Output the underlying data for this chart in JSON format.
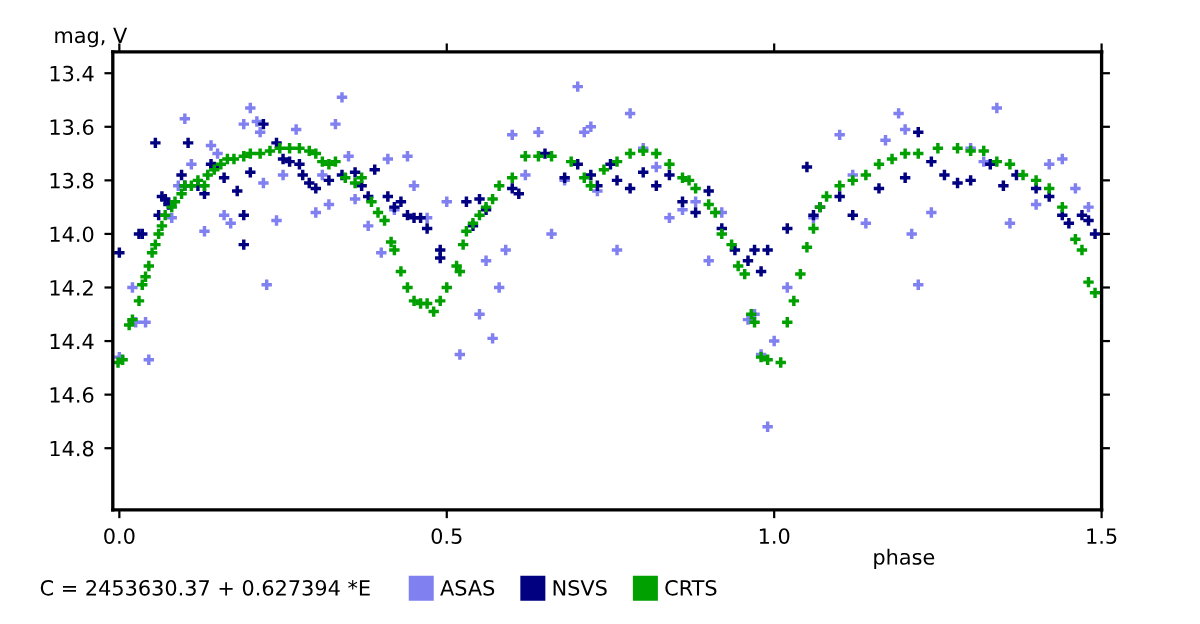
{
  "chart_data": {
    "type": "scatter",
    "ylabel": "mag, V",
    "xlabel": "phase",
    "annotations": [
      "C = 2453630.37 + 0.627394 *E"
    ],
    "xlim": [
      -0.01,
      1.5
    ],
    "ylim": [
      15.03,
      13.32
    ],
    "xticks": [
      {
        "value": 0,
        "label": "0.0"
      },
      {
        "value": 0.5,
        "label": "0.5"
      },
      {
        "value": 1,
        "label": "1.0"
      },
      {
        "value": 1.5,
        "label": "1.5"
      }
    ],
    "yticks": [
      {
        "value": 13.4,
        "label": "13.4"
      },
      {
        "value": 13.6,
        "label": "13.6"
      },
      {
        "value": 13.8,
        "label": "13.8"
      },
      {
        "value": 14,
        "label": "14.0"
      },
      {
        "value": 14.2,
        "label": "14.2"
      },
      {
        "value": 14.4,
        "label": "14.4"
      },
      {
        "value": 14.6,
        "label": "14.6"
      },
      {
        "value": 14.8,
        "label": "14.8"
      }
    ],
    "grid": false,
    "legend": "bottom",
    "marker": "cross",
    "series": [
      {
        "name": "ASAS",
        "color": "#8080f0",
        "x": [
          0.0,
          0.02,
          0.025,
          0.04,
          0.045,
          0.08,
          0.09,
          0.1,
          0.11,
          0.13,
          0.14,
          0.15,
          0.16,
          0.17,
          0.19,
          0.2,
          0.21,
          0.215,
          0.22,
          0.225,
          0.24,
          0.25,
          0.27,
          0.3,
          0.31,
          0.32,
          0.33,
          0.34,
          0.35,
          0.36,
          0.38,
          0.4,
          0.41,
          0.42,
          0.44,
          0.45,
          0.47,
          0.5,
          0.52,
          0.55,
          0.56,
          0.57,
          0.58,
          0.59,
          0.6,
          0.62,
          0.64,
          0.66,
          0.68,
          0.7,
          0.71,
          0.72,
          0.73,
          0.76,
          0.78,
          0.8,
          0.82,
          0.84,
          0.86,
          0.88,
          0.9,
          0.92,
          0.96,
          0.97,
          0.98,
          0.99,
          1.0,
          1.02,
          1.06,
          1.1,
          1.12,
          1.14,
          1.17,
          1.19,
          1.2,
          1.21,
          1.22,
          1.24,
          1.3,
          1.32,
          1.34,
          1.36,
          1.4,
          1.42,
          1.44,
          1.46,
          1.48
        ],
        "values": [
          14.46,
          14.2,
          14.33,
          14.33,
          14.47,
          13.94,
          13.82,
          13.57,
          13.74,
          13.99,
          13.67,
          13.7,
          13.93,
          13.96,
          13.59,
          13.53,
          13.58,
          13.62,
          13.81,
          14.19,
          13.95,
          13.78,
          13.61,
          13.92,
          13.78,
          13.89,
          13.59,
          13.49,
          13.71,
          13.87,
          13.97,
          14.07,
          13.72,
          13.91,
          13.71,
          13.82,
          13.94,
          13.88,
          14.45,
          14.3,
          14.1,
          14.39,
          14.2,
          14.06,
          13.63,
          13.78,
          13.62,
          14.0,
          13.8,
          13.45,
          13.62,
          13.6,
          13.84,
          14.06,
          13.55,
          13.68,
          13.75,
          13.94,
          13.91,
          13.88,
          14.1,
          13.92,
          14.32,
          14.3,
          14.45,
          14.72,
          14.4,
          14.2,
          13.94,
          13.63,
          13.78,
          13.96,
          13.65,
          13.55,
          13.61,
          14.0,
          14.19,
          13.92,
          13.68,
          13.73,
          13.53,
          13.96,
          13.89,
          13.74,
          13.72,
          13.83,
          13.9
        ]
      },
      {
        "name": "NSVS",
        "color": "#000080",
        "x": [
          0.0,
          0.03,
          0.035,
          0.055,
          0.06,
          0.065,
          0.07,
          0.075,
          0.095,
          0.1,
          0.105,
          0.12,
          0.13,
          0.14,
          0.145,
          0.16,
          0.18,
          0.19,
          0.19,
          0.2,
          0.22,
          0.24,
          0.25,
          0.26,
          0.275,
          0.28,
          0.29,
          0.3,
          0.32,
          0.34,
          0.36,
          0.37,
          0.38,
          0.39,
          0.41,
          0.42,
          0.43,
          0.44,
          0.45,
          0.46,
          0.47,
          0.49,
          0.49,
          0.53,
          0.54,
          0.55,
          0.56,
          0.6,
          0.61,
          0.65,
          0.68,
          0.7,
          0.72,
          0.73,
          0.75,
          0.76,
          0.78,
          0.8,
          0.82,
          0.84,
          0.86,
          0.88,
          0.9,
          0.92,
          0.94,
          0.96,
          0.97,
          0.98,
          0.99,
          1.02,
          1.05,
          1.06,
          1.07,
          1.1,
          1.12,
          1.16,
          1.2,
          1.22,
          1.24,
          1.26,
          1.28,
          1.3,
          1.33,
          1.35,
          1.37,
          1.4,
          1.42,
          1.44,
          1.45,
          1.47,
          1.48,
          1.49
        ],
        "values": [
          14.07,
          14.0,
          14.0,
          13.66,
          13.93,
          13.86,
          13.87,
          13.89,
          13.78,
          13.82,
          13.66,
          13.82,
          13.85,
          13.74,
          13.75,
          13.79,
          13.84,
          13.93,
          14.04,
          13.77,
          13.59,
          13.66,
          13.72,
          13.73,
          13.74,
          13.78,
          13.81,
          13.83,
          13.8,
          13.78,
          13.77,
          13.82,
          13.86,
          13.76,
          13.86,
          13.9,
          13.88,
          13.93,
          13.94,
          13.94,
          13.98,
          14.06,
          14.09,
          13.88,
          13.97,
          13.87,
          13.91,
          13.83,
          13.85,
          13.7,
          13.79,
          13.74,
          13.78,
          13.82,
          13.74,
          13.8,
          13.83,
          13.77,
          13.82,
          13.78,
          13.88,
          13.92,
          13.84,
          13.98,
          14.06,
          14.1,
          14.06,
          14.14,
          14.06,
          13.98,
          13.75,
          13.93,
          13.9,
          13.86,
          13.93,
          13.83,
          13.79,
          13.62,
          13.73,
          13.78,
          13.81,
          13.8,
          13.74,
          13.82,
          13.78,
          13.83,
          13.86,
          13.93,
          13.96,
          13.93,
          13.95,
          14.0
        ]
      },
      {
        "name": "CRTS",
        "color": "#00a000",
        "x": [
          -0.002,
          0.005,
          0.015,
          0.02,
          0.03,
          0.035,
          0.04,
          0.045,
          0.05,
          0.055,
          0.06,
          0.065,
          0.07,
          0.08,
          0.085,
          0.095,
          0.1,
          0.11,
          0.12,
          0.13,
          0.135,
          0.145,
          0.155,
          0.165,
          0.175,
          0.19,
          0.2,
          0.215,
          0.23,
          0.245,
          0.26,
          0.275,
          0.29,
          0.3,
          0.31,
          0.32,
          0.33,
          0.345,
          0.36,
          0.37,
          0.385,
          0.395,
          0.405,
          0.415,
          0.42,
          0.43,
          0.44,
          0.45,
          0.46,
          0.47,
          0.48,
          0.49,
          0.5,
          0.515,
          0.52,
          0.525,
          0.53,
          0.54,
          0.55,
          0.56,
          0.57,
          0.58,
          0.6,
          0.62,
          0.64,
          0.66,
          0.69,
          0.71,
          0.72,
          0.74,
          0.76,
          0.78,
          0.8,
          0.82,
          0.84,
          0.86,
          0.87,
          0.88,
          0.9,
          0.91,
          0.92,
          0.935,
          0.945,
          0.955,
          0.965,
          0.97,
          0.98,
          0.99,
          1.01,
          1.02,
          1.03,
          1.04,
          1.05,
          1.06,
          1.07,
          1.08,
          1.1,
          1.12,
          1.14,
          1.16,
          1.18,
          1.2,
          1.22,
          1.25,
          1.28,
          1.3,
          1.32,
          1.34,
          1.36,
          1.38,
          1.4,
          1.42,
          1.44,
          1.46,
          1.47,
          1.48,
          1.49
        ],
        "values": [
          14.48,
          14.47,
          14.34,
          14.32,
          14.25,
          14.19,
          14.16,
          14.12,
          14.07,
          14.04,
          14.0,
          13.97,
          13.93,
          13.9,
          13.88,
          13.85,
          13.82,
          13.82,
          13.8,
          13.82,
          13.78,
          13.76,
          13.74,
          13.72,
          13.72,
          13.71,
          13.7,
          13.7,
          13.69,
          13.68,
          13.68,
          13.68,
          13.69,
          13.7,
          13.73,
          13.74,
          13.73,
          13.79,
          13.81,
          13.79,
          13.88,
          13.92,
          13.95,
          14.03,
          14.06,
          14.14,
          14.2,
          14.25,
          14.26,
          14.26,
          14.29,
          14.25,
          14.2,
          14.12,
          14.14,
          14.04,
          13.99,
          13.96,
          13.93,
          13.9,
          13.87,
          13.82,
          13.79,
          13.71,
          13.71,
          13.71,
          13.73,
          13.79,
          13.82,
          13.76,
          13.73,
          13.7,
          13.69,
          13.7,
          13.74,
          13.79,
          13.8,
          13.83,
          13.89,
          13.92,
          14.0,
          14.04,
          14.12,
          14.15,
          14.3,
          14.33,
          14.46,
          14.47,
          14.48,
          14.33,
          14.25,
          14.15,
          14.05,
          13.98,
          13.9,
          13.86,
          13.82,
          13.8,
          13.78,
          13.74,
          13.72,
          13.7,
          13.7,
          13.68,
          13.68,
          13.69,
          13.69,
          13.73,
          13.74,
          13.78,
          13.8,
          13.83,
          13.9,
          14.02,
          14.06,
          14.18,
          14.22
        ]
      }
    ]
  }
}
